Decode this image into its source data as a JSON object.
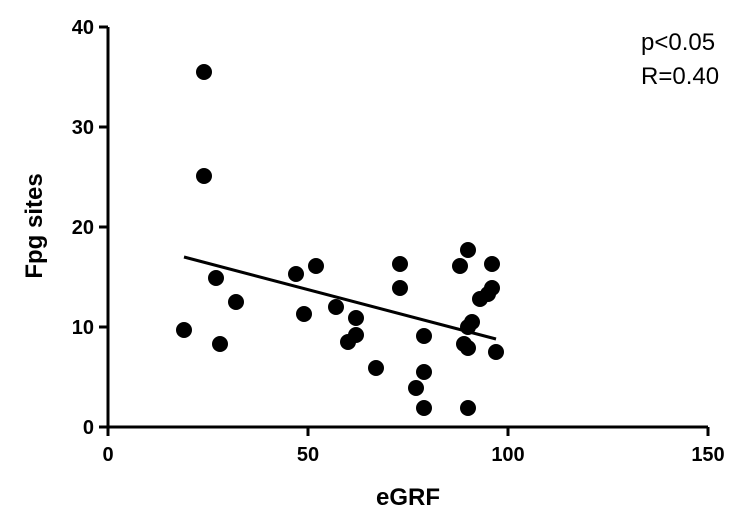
{
  "chart_data": {
    "type": "scatter",
    "xlabel": "eGRF",
    "ylabel": "Fpg sites",
    "xlim": [
      0,
      150
    ],
    "ylim": [
      0,
      40
    ],
    "xticks": [
      0,
      50,
      100,
      150
    ],
    "yticks": [
      0,
      10,
      20,
      30,
      40
    ],
    "grid": false,
    "annotations": [
      "p<0.05",
      "R=0.40"
    ],
    "series": [
      {
        "points": [
          {
            "x": 24,
            "y": 35.5
          },
          {
            "x": 24,
            "y": 25.1
          },
          {
            "x": 19,
            "y": 9.7
          },
          {
            "x": 27,
            "y": 14.9
          },
          {
            "x": 28,
            "y": 8.3
          },
          {
            "x": 32,
            "y": 12.5
          },
          {
            "x": 47,
            "y": 15.3
          },
          {
            "x": 49,
            "y": 11.3
          },
          {
            "x": 52,
            "y": 16.1
          },
          {
            "x": 57,
            "y": 12.0
          },
          {
            "x": 60,
            "y": 8.5
          },
          {
            "x": 62,
            "y": 9.2
          },
          {
            "x": 62,
            "y": 10.9
          },
          {
            "x": 67,
            "y": 5.9
          },
          {
            "x": 73,
            "y": 16.3
          },
          {
            "x": 73,
            "y": 13.9
          },
          {
            "x": 77,
            "y": 3.9
          },
          {
            "x": 79,
            "y": 9.1
          },
          {
            "x": 79,
            "y": 5.5
          },
          {
            "x": 79,
            "y": 1.9
          },
          {
            "x": 88,
            "y": 16.1
          },
          {
            "x": 89,
            "y": 8.3
          },
          {
            "x": 90,
            "y": 17.7
          },
          {
            "x": 90,
            "y": 10.0
          },
          {
            "x": 90,
            "y": 7.9
          },
          {
            "x": 90,
            "y": 1.9
          },
          {
            "x": 91,
            "y": 10.5
          },
          {
            "x": 93,
            "y": 12.8
          },
          {
            "x": 95,
            "y": 13.3
          },
          {
            "x": 96,
            "y": 16.3
          },
          {
            "x": 96,
            "y": 13.9
          },
          {
            "x": 97,
            "y": 7.5
          }
        ]
      }
    ],
    "regression_line": {
      "x": [
        19,
        97
      ],
      "y": [
        17.0,
        8.8
      ]
    }
  }
}
